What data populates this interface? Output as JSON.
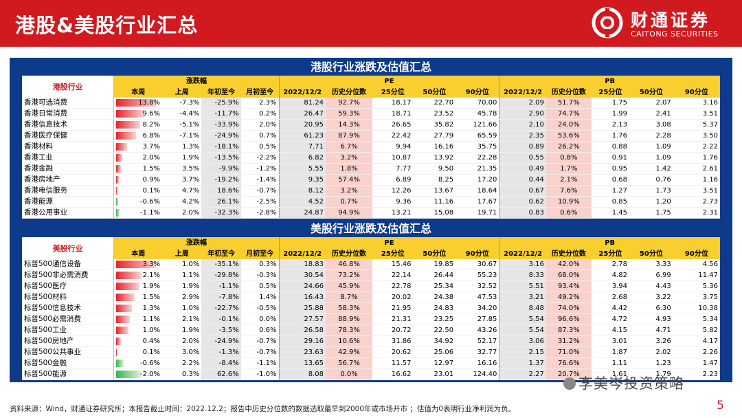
{
  "header": {
    "title": "港股&美股行业汇总",
    "logo_cn": "财通证券",
    "logo_en": "CAITONG SECURITIES"
  },
  "colors": {
    "accent": "#d01a1f",
    "panel": "#0d3a8b",
    "header_yellow": "#f8cf2e",
    "bar_pos": "#e8232a",
    "bar_neg": "#3cb44b"
  },
  "hk": {
    "title": "港股行业涨跌及估值汇总",
    "rowhead": "港股行业",
    "grp_change": "涨跌幅",
    "grp_pe": "PE",
    "grp_pb": "PB",
    "cols": [
      "本周",
      "上周",
      "年初至今",
      "月初至今",
      "2022/12/2",
      "历史分位数",
      "25分位",
      "50分位",
      "90分位",
      "2022/12/2",
      "历史分位数",
      "25分位",
      "50分位",
      "90分位"
    ],
    "rows": [
      {
        "name": "香港可选消费",
        "wk": 13.8,
        "w": "13.8%",
        "lw": "-7.3%",
        "ytd": "-25.9%",
        "mtd": "2.3%",
        "pe": "81.24",
        "pep": "92.7%",
        "pe25": "18.17",
        "pe50": "22.70",
        "pe90": "70.00",
        "pb": "2.09",
        "pbp": "51.7%",
        "pb25": "1.75",
        "pb50": "2.07",
        "pb90": "3.16"
      },
      {
        "name": "香港日常消费",
        "wk": 9.6,
        "w": "9.6%",
        "lw": "-4.4%",
        "ytd": "-11.7%",
        "mtd": "0.2%",
        "pe": "26.47",
        "pep": "59.3%",
        "pe25": "18.71",
        "pe50": "23.52",
        "pe90": "45.78",
        "pb": "2.90",
        "pbp": "74.7%",
        "pb25": "1.99",
        "pb50": "2.41",
        "pb90": "3.51"
      },
      {
        "name": "香港信息技术",
        "wk": 8.2,
        "w": "8.2%",
        "lw": "-5.1%",
        "ytd": "-33.9%",
        "mtd": "2.0%",
        "pe": "20.95",
        "pep": "14.3%",
        "pe25": "26.65",
        "pe50": "35.82",
        "pe90": "121.66",
        "pb": "2.10",
        "pbp": "24.0%",
        "pb25": "2.13",
        "pb50": "3.08",
        "pb90": "5.37"
      },
      {
        "name": "香港医疗保健",
        "wk": 6.8,
        "w": "6.8%",
        "lw": "-7.1%",
        "ytd": "-24.9%",
        "mtd": "0.7%",
        "pe": "61.23",
        "pep": "87.9%",
        "pe25": "22.42",
        "pe50": "27.79",
        "pe90": "65.59",
        "pb": "2.35",
        "pbp": "53.6%",
        "pb25": "1.76",
        "pb50": "2.28",
        "pb90": "3.50"
      },
      {
        "name": "香港材料",
        "wk": 3.7,
        "w": "3.7%",
        "lw": "1.3%",
        "ytd": "-18.1%",
        "mtd": "0.5%",
        "pe": "7.71",
        "pep": "6.7%",
        "pe25": "9.94",
        "pe50": "16.16",
        "pe90": "35.75",
        "pb": "0.89",
        "pbp": "26.2%",
        "pb25": "0.88",
        "pb50": "1.09",
        "pb90": "2.22"
      },
      {
        "name": "香港工业",
        "wk": 2.0,
        "w": "2.0%",
        "lw": "1.9%",
        "ytd": "-13.5%",
        "mtd": "-2.2%",
        "pe": "6.82",
        "pep": "3.2%",
        "pe25": "10.87",
        "pe50": "13.92",
        "pe90": "22.28",
        "pb": "0.55",
        "pbp": "0.8%",
        "pb25": "0.91",
        "pb50": "1.09",
        "pb90": "1.76"
      },
      {
        "name": "香港金融",
        "wk": 1.5,
        "w": "1.5%",
        "lw": "3.5%",
        "ytd": "-9.9%",
        "mtd": "-1.2%",
        "pe": "5.55",
        "pep": "1.8%",
        "pe25": "7.77",
        "pe50": "9.50",
        "pe90": "21.35",
        "pb": "0.49",
        "pbp": "1.7%",
        "pb25": "0.95",
        "pb50": "1.42",
        "pb90": "2.61"
      },
      {
        "name": "香港房地产",
        "wk": 0.9,
        "w": "0.9%",
        "lw": "3.7%",
        "ytd": "-19.2%",
        "mtd": "-1.4%",
        "pe": "9.35",
        "pep": "57.4%",
        "pe25": "6.89",
        "pe50": "8.25",
        "pe90": "17.20",
        "pb": "0.44",
        "pbp": "2.1%",
        "pb25": "0.68",
        "pb50": "0.76",
        "pb90": "1.16"
      },
      {
        "name": "香港电信服务",
        "wk": 0.1,
        "w": "0.1%",
        "lw": "4.7%",
        "ytd": "18.6%",
        "mtd": "-0.7%",
        "pe": "8.12",
        "pep": "3.2%",
        "pe25": "12.26",
        "pe50": "13.67",
        "pe90": "18.64",
        "pb": "0.67",
        "pbp": "7.6%",
        "pb25": "1.27",
        "pb50": "1.73",
        "pb90": "3.51"
      },
      {
        "name": "香港能源",
        "wk": -0.6,
        "w": "-0.6%",
        "lw": "4.2%",
        "ytd": "26.1%",
        "mtd": "-2.5%",
        "pe": "4.52",
        "pep": "0.7%",
        "pe25": "9.36",
        "pe50": "11.16",
        "pe90": "17.67",
        "pb": "0.62",
        "pbp": "10.9%",
        "pb25": "0.85",
        "pb50": "1.20",
        "pb90": "2.73"
      },
      {
        "name": "香港公用事业",
        "wk": -1.1,
        "w": "-1.1%",
        "lw": "2.0%",
        "ytd": "-32.3%",
        "mtd": "-2.8%",
        "pe": "24.87",
        "pep": "94.9%",
        "pe25": "13.21",
        "pe50": "15.08",
        "pe90": "19.71",
        "pb": "0.83",
        "pbp": "0.6%",
        "pb25": "1.45",
        "pb50": "1.75",
        "pb90": "2.31"
      }
    ]
  },
  "us": {
    "title": "美股行业涨跌及估值汇总",
    "rowhead": "美股行业",
    "grp_change": "涨跌幅",
    "grp_pe": "PE",
    "grp_pb": "PB",
    "cols": [
      "本周",
      "上周",
      "年初至今",
      "月初至今",
      "2022/12/2",
      "历史分位数",
      "25分位",
      "50分位",
      "90分位",
      "2022/12/2",
      "历史分位数",
      "25分位",
      "50分位",
      "90分位"
    ],
    "rows": [
      {
        "name": "标普500通信设备",
        "wk": 3.3,
        "w": "3.3%",
        "lw": "1.0%",
        "ytd": "-35.1%",
        "mtd": "0.3%",
        "pe": "18.83",
        "pep": "46.8%",
        "pe25": "15.46",
        "pe50": "19.85",
        "pe90": "30.67",
        "pb": "3.16",
        "pbp": "42.0%",
        "pb25": "2.78",
        "pb50": "3.33",
        "pb90": "4.56"
      },
      {
        "name": "标普500非必需消费",
        "wk": 2.1,
        "w": "2.1%",
        "lw": "1.1%",
        "ytd": "-29.8%",
        "mtd": "-0.3%",
        "pe": "30.54",
        "pep": "73.2%",
        "pe25": "22.14",
        "pe50": "26.44",
        "pe90": "55.23",
        "pb": "8.33",
        "pbp": "68.0%",
        "pb25": "4.82",
        "pb50": "6.99",
        "pb90": "11.47"
      },
      {
        "name": "标普500医疗",
        "wk": 1.9,
        "w": "1.9%",
        "lw": "1.9%",
        "ytd": "-1.1%",
        "mtd": "0.5%",
        "pe": "24.66",
        "pep": "45.9%",
        "pe25": "22.78",
        "pe50": "25.34",
        "pe90": "32.52",
        "pb": "5.51",
        "pbp": "93.4%",
        "pb25": "3.94",
        "pb50": "4.43",
        "pb90": "5.36"
      },
      {
        "name": "标普500材料",
        "wk": 1.5,
        "w": "1.5%",
        "lw": "2.9%",
        "ytd": "-7.8%",
        "mtd": "1.4%",
        "pe": "16.43",
        "pep": "8.7%",
        "pe25": "20.02",
        "pe50": "24.38",
        "pe90": "47.53",
        "pb": "3.21",
        "pbp": "49.2%",
        "pb25": "2.68",
        "pb50": "3.22",
        "pb90": "3.75"
      },
      {
        "name": "标普500信息技术",
        "wk": 1.3,
        "w": "1.3%",
        "lw": "1.0%",
        "ytd": "-22.7%",
        "mtd": "-0.5%",
        "pe": "25.88",
        "pep": "58.3%",
        "pe25": "21.95",
        "pe50": "24.83",
        "pe90": "34.20",
        "pb": "8.48",
        "pbp": "74.0%",
        "pb25": "4.42",
        "pb50": "6.30",
        "pb90": "10.38"
      },
      {
        "name": "标普500必需消费",
        "wk": 1.1,
        "w": "1.1%",
        "lw": "2.1%",
        "ytd": "-0.1%",
        "mtd": "0.0%",
        "pe": "27.57",
        "pep": "88.9%",
        "pe25": "21.31",
        "pe50": "23.25",
        "pe90": "27.85",
        "pb": "5.54",
        "pbp": "96.6%",
        "pb25": "4.72",
        "pb50": "4.93",
        "pb90": "5.34"
      },
      {
        "name": "标普500工业",
        "wk": 1.0,
        "w": "1.0%",
        "lw": "1.9%",
        "ytd": "-3.5%",
        "mtd": "0.6%",
        "pe": "26.58",
        "pep": "78.3%",
        "pe25": "20.72",
        "pe50": "22.50",
        "pe90": "43.26",
        "pb": "5.54",
        "pbp": "87.3%",
        "pb25": "4.15",
        "pb50": "4.71",
        "pb90": "5.82"
      },
      {
        "name": "标普500房地产",
        "wk": 0.4,
        "w": "0.4%",
        "lw": "2.0%",
        "ytd": "-24.9%",
        "mtd": "-0.7%",
        "pe": "29.16",
        "pep": "10.6%",
        "pe25": "31.86",
        "pe50": "34.92",
        "pe90": "52.17",
        "pb": "3.06",
        "pbp": "31.2%",
        "pb25": "3.01",
        "pb50": "3.26",
        "pb90": "4.17"
      },
      {
        "name": "标普500公共事业",
        "wk": 0.1,
        "w": "0.1%",
        "lw": "3.0%",
        "ytd": "-1.3%",
        "mtd": "-0.7%",
        "pe": "23.63",
        "pep": "42.9%",
        "pe25": "20.62",
        "pe50": "25.06",
        "pe90": "32.77",
        "pb": "2.15",
        "pbp": "71.0%",
        "pb25": "1.87",
        "pb50": "2.02",
        "pb90": "2.26"
      },
      {
        "name": "标普500金融",
        "wk": -0.6,
        "w": "-0.6%",
        "lw": "2.2%",
        "ytd": "-8.4%",
        "mtd": "-1.1%",
        "pe": "13.65",
        "pep": "56.7%",
        "pe25": "11.57",
        "pe50": "12.97",
        "pe90": "16.16",
        "pb": "1.37",
        "pbp": "76.6%",
        "pb25": "1.11",
        "pb50": "1.23",
        "pb90": "1.47"
      },
      {
        "name": "标普500能源",
        "wk": -2.0,
        "w": "-2.0%",
        "lw": "0.3%",
        "ytd": "62.6%",
        "mtd": "-1.0%",
        "pe": "8.08",
        "pep": "0.0%",
        "pe25": "16.62",
        "pe50": "23.01",
        "pe90": "124.40",
        "pb": "2.27",
        "pbp": "20.7%",
        "pb25": "1.61",
        "pb50": "1.79",
        "pb90": "2.23"
      }
    ]
  },
  "footer": {
    "note": "资料来源：Wind，财通证券研究所；本报告截止时间：2022.12.2；报告中历史分位数的数据选取最早到2000年或市场开市 ；估值为0表明行业净利润为负。",
    "page": "5",
    "watermark": "李美岑投资策略"
  }
}
